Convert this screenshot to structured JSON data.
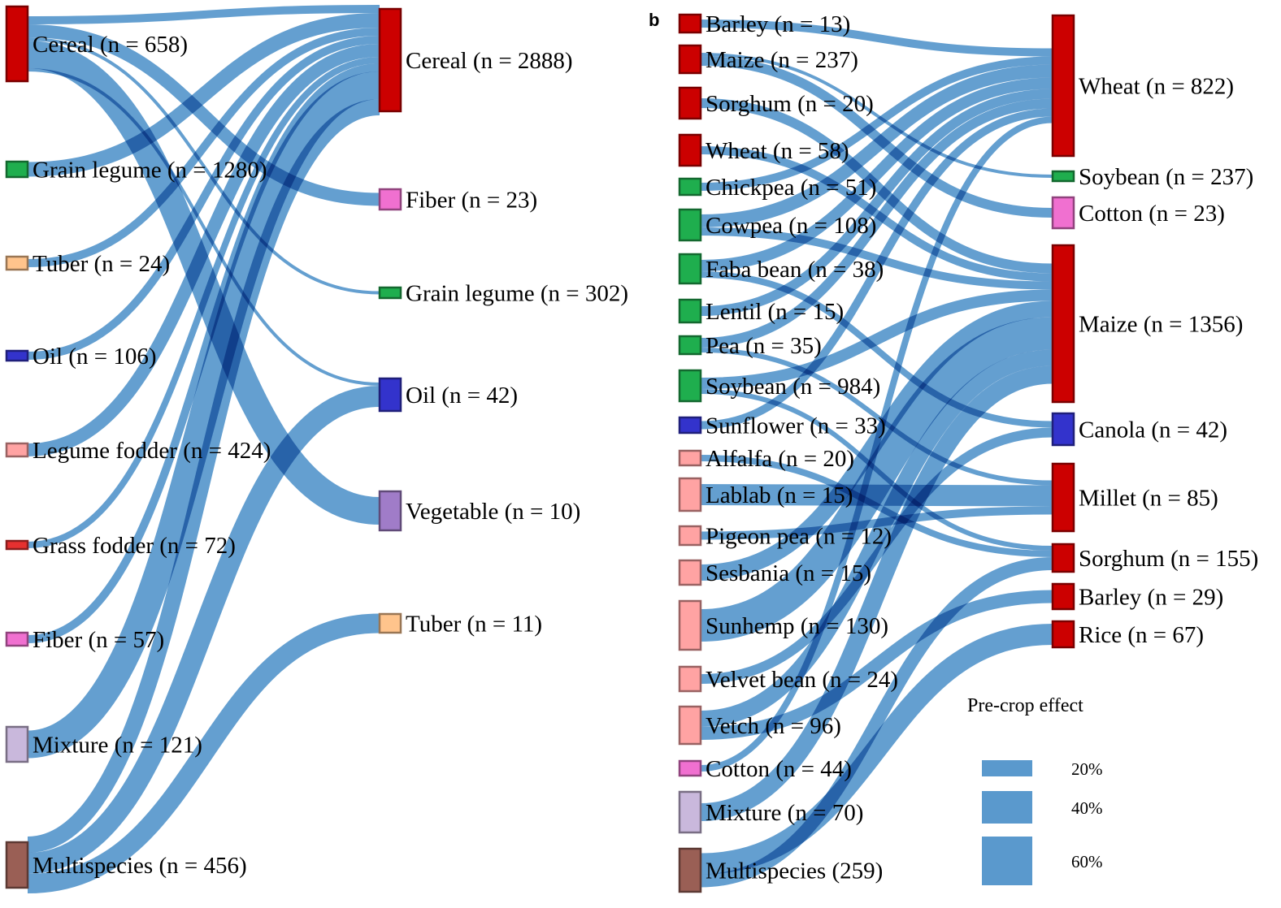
{
  "chart_data": [
    {
      "type": "sankey",
      "panel": "",
      "title": "",
      "unit": "pre-crop effect (%)",
      "sources": [
        {
          "id": "cereal",
          "label": "Cereal (n = 658)",
          "color": "#cc0000"
        },
        {
          "id": "grain_legume",
          "label": "Grain legume (n = 1280)",
          "color": "#1fae4e"
        },
        {
          "id": "tuber",
          "label": "Tuber (n = 24)",
          "color": "#ffc48c"
        },
        {
          "id": "oil",
          "label": "Oil (n = 106)",
          "color": "#3333cc"
        },
        {
          "id": "legume_fodder",
          "label": "Legume fodder (n = 424)",
          "color": "#ffa3a3"
        },
        {
          "id": "grass_fodder",
          "label": "Grass fodder (n = 72)",
          "color": "#e63030"
        },
        {
          "id": "fiber",
          "label": "Fiber (n = 57)",
          "color": "#f070d0"
        },
        {
          "id": "mixture",
          "label": "Mixture (n = 121)",
          "color": "#c9b8dc"
        },
        {
          "id": "multispecies",
          "label": "Multispecies (n = 456)",
          "color": "#9a5f55"
        }
      ],
      "targets": [
        {
          "id": "t_cereal",
          "label": "Cereal (n = 2888)",
          "color": "#cc0000"
        },
        {
          "id": "t_fiber",
          "label": "Fiber (n = 23)",
          "color": "#f070d0"
        },
        {
          "id": "t_grain_legume",
          "label": "Grain legume (n = 302)",
          "color": "#1fae4e"
        },
        {
          "id": "t_oil",
          "label": "Oil (n = 42)",
          "color": "#3333cc"
        },
        {
          "id": "t_vegetable",
          "label": "Vegetable (n = 10)",
          "color": "#a07cc8"
        },
        {
          "id": "t_tuber",
          "label": "Tuber (n = 11)",
          "color": "#ffc48c"
        }
      ],
      "links": [
        {
          "source": "cereal",
          "target": "t_cereal",
          "value": 10
        },
        {
          "source": "cereal",
          "target": "t_fiber",
          "value": 16
        },
        {
          "source": "cereal",
          "target": "t_grain_legume",
          "value": 4
        },
        {
          "source": "cereal",
          "target": "t_vegetable",
          "value": 34
        },
        {
          "source": "cereal",
          "target": "t_oil",
          "value": 4
        },
        {
          "source": "grain_legume",
          "target": "t_cereal",
          "value": 18
        },
        {
          "source": "tuber",
          "target": "t_cereal",
          "value": 10
        },
        {
          "source": "oil",
          "target": "t_cereal",
          "value": 10
        },
        {
          "source": "legume_fodder",
          "target": "t_cereal",
          "value": 16
        },
        {
          "source": "grass_fodder",
          "target": "t_cereal",
          "value": 8
        },
        {
          "source": "fiber",
          "target": "t_cereal",
          "value": 10
        },
        {
          "source": "mixture",
          "target": "t_cereal",
          "value": 34
        },
        {
          "source": "multispecies",
          "target": "t_cereal",
          "value": 20
        },
        {
          "source": "multispecies",
          "target": "t_oil",
          "value": 26
        },
        {
          "source": "multispecies",
          "target": "t_tuber",
          "value": 24
        }
      ]
    },
    {
      "type": "sankey",
      "panel": "b",
      "title": "",
      "unit": "pre-crop effect (%)",
      "sources": [
        {
          "id": "barley",
          "label": "Barley (n = 13)",
          "color": "#cc0000"
        },
        {
          "id": "maize",
          "label": "Maize (n = 237)",
          "color": "#cc0000"
        },
        {
          "id": "sorghum",
          "label": "Sorghum (n = 20)",
          "color": "#cc0000"
        },
        {
          "id": "wheat",
          "label": "Wheat (n = 58)",
          "color": "#cc0000"
        },
        {
          "id": "chickpea",
          "label": "Chickpea (n = 51)",
          "color": "#1fae4e"
        },
        {
          "id": "cowpea",
          "label": "Cowpea (n = 108)",
          "color": "#1fae4e"
        },
        {
          "id": "faba_bean",
          "label": "Faba bean (n = 38)",
          "color": "#1fae4e"
        },
        {
          "id": "lentil",
          "label": "Lentil (n = 15)",
          "color": "#1fae4e"
        },
        {
          "id": "pea",
          "label": "Pea (n = 35)",
          "color": "#1fae4e"
        },
        {
          "id": "soybean",
          "label": "Soybean (n = 984)",
          "color": "#1fae4e"
        },
        {
          "id": "sunflower",
          "label": "Sunflower (n = 33)",
          "color": "#3333cc"
        },
        {
          "id": "alfalfa",
          "label": "Alfalfa (n = 20)",
          "color": "#ffa3a3"
        },
        {
          "id": "lablab",
          "label": "Lablab (n = 15)",
          "color": "#ffa3a3"
        },
        {
          "id": "pigeon_pea",
          "label": "Pigeon pea (n = 12)",
          "color": "#ffa3a3"
        },
        {
          "id": "sesbania",
          "label": "Sesbania (n = 15)",
          "color": "#ffa3a3"
        },
        {
          "id": "sunhemp",
          "label": "Sunhemp (n = 130)",
          "color": "#ffa3a3"
        },
        {
          "id": "velvet_bean",
          "label": "Velvet bean (n = 24)",
          "color": "#ffa3a3"
        },
        {
          "id": "vetch",
          "label": "Vetch (n = 96)",
          "color": "#ffa3a3"
        },
        {
          "id": "cotton",
          "label": "Cotton (n = 44)",
          "color": "#f070d0"
        },
        {
          "id": "mixture",
          "label": "Mixture (n = 70)",
          "color": "#c9b8dc"
        },
        {
          "id": "multispecies",
          "label": "Multispecies (259)",
          "color": "#9a5f55"
        }
      ],
      "targets": [
        {
          "id": "t_wheat",
          "label": "Wheat (n = 822)",
          "color": "#cc0000"
        },
        {
          "id": "t_soybean",
          "label": "Soybean (n = 237)",
          "color": "#1fae4e"
        },
        {
          "id": "t_cotton",
          "label": "Cotton (n = 23)",
          "color": "#f070d0"
        },
        {
          "id": "t_maize",
          "label": "Maize (n = 1356)",
          "color": "#cc0000"
        },
        {
          "id": "t_canola",
          "label": "Canola (n = 42)",
          "color": "#3333cc"
        },
        {
          "id": "t_millet",
          "label": "Millet (n = 85)",
          "color": "#cc0000"
        },
        {
          "id": "t_sorghum",
          "label": "Sorghum (n = 155)",
          "color": "#cc0000"
        },
        {
          "id": "t_barley",
          "label": "Barley (n = 29)",
          "color": "#cc0000"
        },
        {
          "id": "t_rice",
          "label": "Rice (n = 67)",
          "color": "#cc0000"
        }
      ],
      "links": [
        {
          "source": "barley",
          "target": "t_wheat",
          "value": 10
        },
        {
          "source": "maize",
          "target": "t_soybean",
          "value": 4
        },
        {
          "source": "maize",
          "target": "t_cotton",
          "value": 12
        },
        {
          "source": "sorghum",
          "target": "t_maize",
          "value": 12
        },
        {
          "source": "wheat",
          "target": "t_maize",
          "value": 10
        },
        {
          "source": "chickpea",
          "target": "t_wheat",
          "value": 10
        },
        {
          "source": "cowpea",
          "target": "t_wheat",
          "value": 16
        },
        {
          "source": "cowpea",
          "target": "t_maize",
          "value": 10
        },
        {
          "source": "faba_bean",
          "target": "t_wheat",
          "value": 14
        },
        {
          "source": "faba_bean",
          "target": "t_canola",
          "value": 8
        },
        {
          "source": "lentil",
          "target": "t_wheat",
          "value": 12
        },
        {
          "source": "pea",
          "target": "t_wheat",
          "value": 12
        },
        {
          "source": "pea",
          "target": "t_millet",
          "value": 6
        },
        {
          "source": "soybean",
          "target": "t_maize",
          "value": 14
        },
        {
          "source": "soybean",
          "target": "t_sorghum",
          "value": 6
        },
        {
          "source": "sunflower",
          "target": "t_wheat",
          "value": 10
        },
        {
          "source": "alfalfa",
          "target": "t_sorghum",
          "value": 8
        },
        {
          "source": "lablab",
          "target": "t_millet",
          "value": 26
        },
        {
          "source": "pigeon_pea",
          "target": "t_millet",
          "value": 10
        },
        {
          "source": "sesbania",
          "target": "t_maize",
          "value": 20
        },
        {
          "source": "sunhemp",
          "target": "t_maize",
          "value": 40
        },
        {
          "source": "velvet_bean",
          "target": "t_canola",
          "value": 12
        },
        {
          "source": "vetch",
          "target": "t_maize",
          "value": 20
        },
        {
          "source": "vetch",
          "target": "t_barley",
          "value": 16
        },
        {
          "source": "cotton",
          "target": "t_wheat",
          "value": 8
        },
        {
          "source": "mixture",
          "target": "t_maize",
          "value": 22
        },
        {
          "source": "multispecies",
          "target": "t_rice",
          "value": 26
        },
        {
          "source": "multispecies",
          "target": "t_sorghum",
          "value": 16
        }
      ],
      "legend": {
        "title": "Pre-crop effect",
        "items": [
          {
            "label": "20%",
            "value": 20
          },
          {
            "label": "40%",
            "value": 40
          },
          {
            "label": "60%",
            "value": 60
          }
        ],
        "color": "#3d87c4"
      }
    }
  ]
}
